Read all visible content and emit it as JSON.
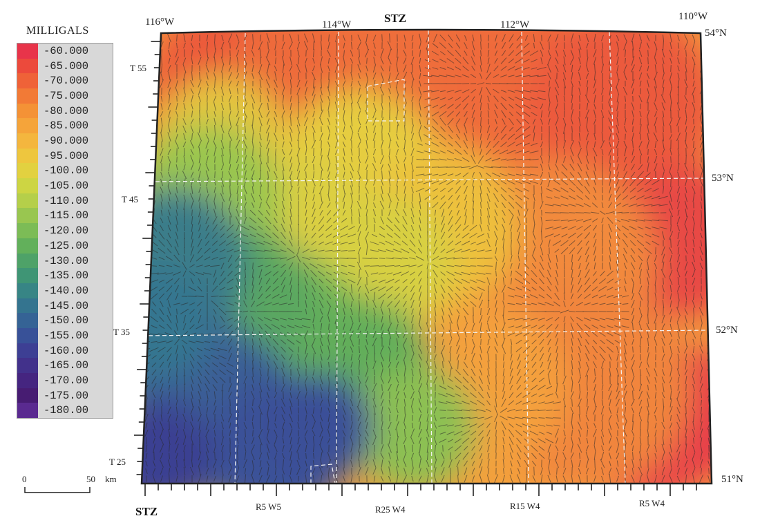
{
  "legend": {
    "title": "MILLIGALS",
    "values": [
      "-60.000",
      "-65.000",
      "-70.000",
      "-75.000",
      "-80.000",
      "-85.000",
      "-90.000",
      "-95.000",
      "-100.00",
      "-105.00",
      "-110.00",
      "-115.00",
      "-120.00",
      "-125.00",
      "-130.00",
      "-135.00",
      "-140.00",
      "-145.00",
      "-150.00",
      "-155.00",
      "-160.00",
      "-165.00",
      "-170.00",
      "-175.00",
      "-180.00"
    ],
    "colors": [
      "#e8344a",
      "#ec4a3c",
      "#ef6238",
      "#f27a36",
      "#f49236",
      "#f5a43a",
      "#f4b63e",
      "#eec63e",
      "#e2d140",
      "#cdd543",
      "#b5cf4a",
      "#99c650",
      "#7cbc56",
      "#62b05b",
      "#4ea268",
      "#3f9575",
      "#378585",
      "#34748f",
      "#356395",
      "#385198",
      "#3d3f94",
      "#42318b",
      "#452580",
      "#471c72",
      "#5a2a90"
    ]
  },
  "scale": {
    "zero": "0",
    "fifty": "50",
    "unit": "km"
  },
  "longitudes": [
    "116°W",
    "114°W",
    "112°W",
    "110°W"
  ],
  "latitudes": [
    "54°N",
    "53°N",
    "52°N",
    "51°N"
  ],
  "townships": [
    "T 55",
    "T 45",
    "T 35",
    "T 25"
  ],
  "ranges": [
    "R5 W5",
    "R25 W4",
    "R15 W4",
    "R5 W4"
  ],
  "stz": {
    "top": "STZ",
    "bottom": "STZ"
  },
  "anomaly_centers": [
    {
      "name": "high-1",
      "value": -75
    },
    {
      "name": "high-2",
      "value": -78
    },
    {
      "name": "high-3",
      "value": -85
    },
    {
      "name": "high-4",
      "value": -88
    },
    {
      "name": "high-5",
      "value": -82
    },
    {
      "name": "low-1",
      "value": -150
    },
    {
      "name": "low-2",
      "value": -145
    }
  ]
}
